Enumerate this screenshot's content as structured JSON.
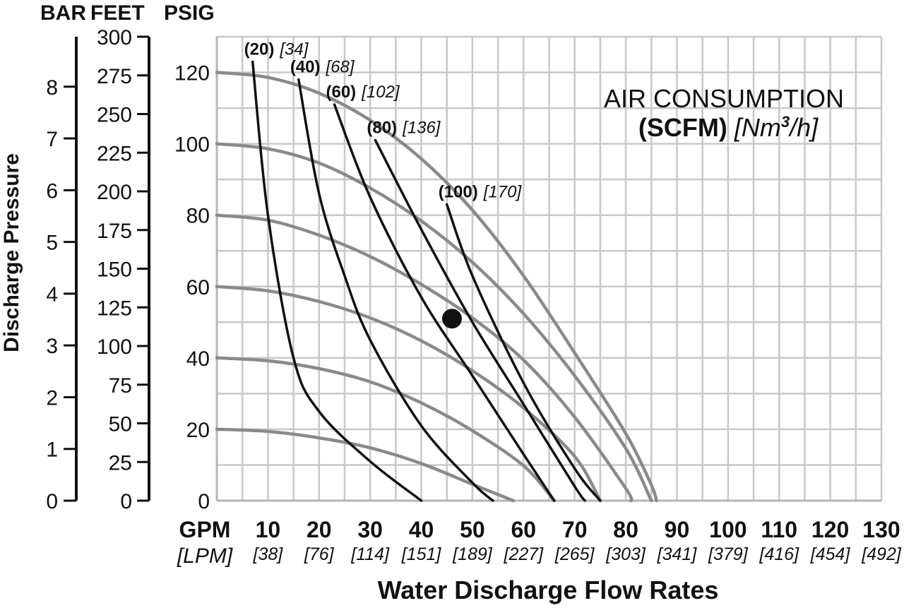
{
  "chart_data": {
    "type": "line",
    "ylabel": "Discharge Pressure",
    "xlabel": "Water Discharge Flow Rates",
    "units": {
      "bar": "BAR",
      "feet": "FEET",
      "psig": "PSIG",
      "gpm": "GPM",
      "lpm": "[LPM]"
    },
    "xlim": [
      0,
      130
    ],
    "ylim_psig": [
      0,
      130
    ],
    "x_ticks": [
      {
        "gpm": "10",
        "lpm": "[38]"
      },
      {
        "gpm": "20",
        "lpm": "[76]"
      },
      {
        "gpm": "30",
        "lpm": "[114]"
      },
      {
        "gpm": "40",
        "lpm": "[151]"
      },
      {
        "gpm": "50",
        "lpm": "[189]"
      },
      {
        "gpm": "60",
        "lpm": "[227]"
      },
      {
        "gpm": "70",
        "lpm": "[265]"
      },
      {
        "gpm": "80",
        "lpm": "[303]"
      },
      {
        "gpm": "90",
        "lpm": "[341]"
      },
      {
        "gpm": "100",
        "lpm": "[379]"
      },
      {
        "gpm": "110",
        "lpm": "[416]"
      },
      {
        "gpm": "120",
        "lpm": "[454]"
      },
      {
        "gpm": "130",
        "lpm": "[492]"
      }
    ],
    "psig_ticks": [
      "0",
      "20",
      "40",
      "60",
      "80",
      "100",
      "120"
    ],
    "feet_ticks": [
      "0",
      "25",
      "50",
      "75",
      "100",
      "125",
      "150",
      "175",
      "200",
      "225",
      "250",
      "275",
      "300"
    ],
    "bar_ticks": [
      "0",
      "1",
      "2",
      "3",
      "4",
      "5",
      "6",
      "7",
      "8"
    ],
    "legend_title_1": "AIR CONSUMPTION",
    "legend_title_2": "(SCFM)",
    "legend_title_3": "[Nm",
    "legend_title_sup": "3",
    "legend_title_4": "/h]",
    "pressure_curves": [
      {
        "points": [
          [
            0,
            20
          ],
          [
            10,
            19.4
          ],
          [
            20,
            17.6
          ],
          [
            30,
            14.8
          ],
          [
            40,
            10.4
          ],
          [
            50,
            4.6
          ],
          [
            58,
            0
          ]
        ]
      },
      {
        "points": [
          [
            0,
            40
          ],
          [
            10,
            39.2
          ],
          [
            20,
            37
          ],
          [
            30,
            33.3
          ],
          [
            40,
            27.4
          ],
          [
            50,
            19.6
          ],
          [
            60,
            9.8
          ],
          [
            66,
            0
          ]
        ]
      },
      {
        "points": [
          [
            0,
            60
          ],
          [
            10,
            58.8
          ],
          [
            20,
            55.8
          ],
          [
            30,
            51.2
          ],
          [
            40,
            44.8
          ],
          [
            50,
            36.4
          ],
          [
            60,
            26
          ],
          [
            70,
            12.4
          ],
          [
            75,
            0
          ]
        ]
      },
      {
        "points": [
          [
            0,
            80
          ],
          [
            10,
            78.6
          ],
          [
            20,
            74.4
          ],
          [
            30,
            68.4
          ],
          [
            40,
            60.6
          ],
          [
            50,
            51.2
          ],
          [
            60,
            39.4
          ],
          [
            70,
            23.4
          ],
          [
            80,
            3.4
          ],
          [
            81,
            0
          ]
        ]
      },
      {
        "points": [
          [
            0,
            100
          ],
          [
            10,
            98.6
          ],
          [
            20,
            94.6
          ],
          [
            30,
            87.6
          ],
          [
            40,
            78.4
          ],
          [
            50,
            66.8
          ],
          [
            60,
            52.4
          ],
          [
            70,
            35
          ],
          [
            80,
            14.6
          ],
          [
            85,
            0
          ]
        ]
      },
      {
        "points": [
          [
            0,
            120
          ],
          [
            10,
            118.6
          ],
          [
            20,
            114.2
          ],
          [
            30,
            106.6
          ],
          [
            40,
            95.8
          ],
          [
            50,
            81.4
          ],
          [
            60,
            63
          ],
          [
            70,
            41.4
          ],
          [
            80,
            18.8
          ],
          [
            85,
            4.4
          ],
          [
            86,
            0
          ]
        ]
      }
    ],
    "air_curves": [
      {
        "scfm": "(20)",
        "nm3h": "[34]",
        "points": [
          [
            7,
            123
          ],
          [
            10,
            80
          ],
          [
            15,
            40
          ],
          [
            20,
            25
          ],
          [
            30,
            11
          ],
          [
            40,
            0
          ]
        ]
      },
      {
        "scfm": "(40)",
        "nm3h": "[68]",
        "points": [
          [
            16,
            118
          ],
          [
            20,
            86
          ],
          [
            25,
            63
          ],
          [
            30,
            45
          ],
          [
            40,
            21
          ],
          [
            50,
            5
          ],
          [
            54,
            0
          ]
        ]
      },
      {
        "scfm": "(60)",
        "nm3h": "[102]",
        "points": [
          [
            23,
            111
          ],
          [
            30,
            85
          ],
          [
            40,
            57
          ],
          [
            50,
            35
          ],
          [
            60,
            13
          ],
          [
            66,
            0
          ]
        ]
      },
      {
        "scfm": "(80)",
        "nm3h": "[136]",
        "points": [
          [
            31,
            101
          ],
          [
            40,
            76
          ],
          [
            50,
            50
          ],
          [
            60,
            27
          ],
          [
            70,
            4
          ],
          [
            72,
            0
          ]
        ]
      },
      {
        "scfm": "(100)",
        "nm3h": "[170]",
        "points": [
          [
            45,
            83
          ],
          [
            50,
            63
          ],
          [
            60,
            33
          ],
          [
            70,
            9
          ],
          [
            75,
            0
          ]
        ]
      }
    ],
    "operating_point": {
      "gpm": 46,
      "psig": 51
    },
    "colors": {
      "pressure_curve": "#8a8a8a",
      "air_curve": "#111111",
      "grid": "#c8c8c8",
      "text": "#111111"
    }
  }
}
